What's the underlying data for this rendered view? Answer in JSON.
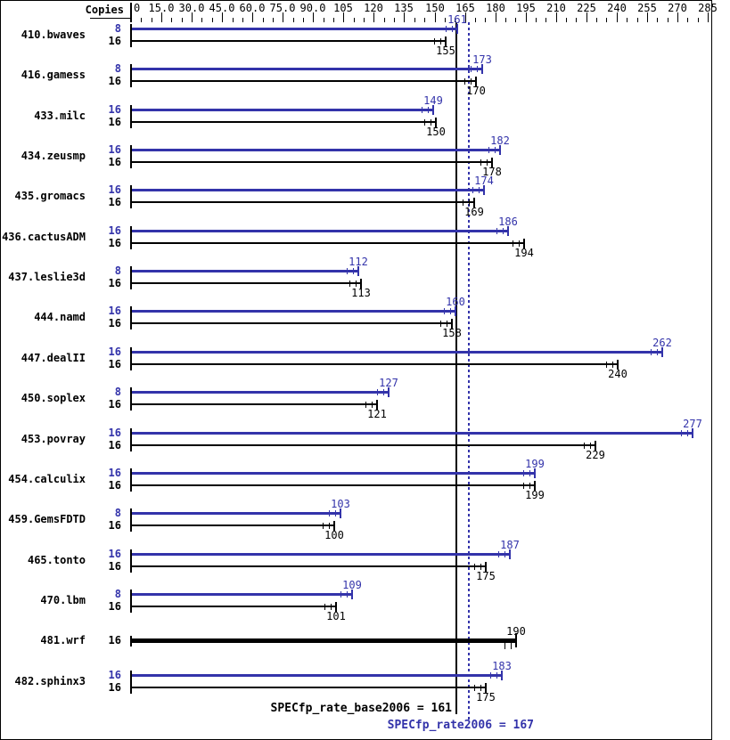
{
  "chart_data": {
    "type": "bar",
    "orientation": "horizontal",
    "copies_header": "Copies",
    "series_colors": {
      "peak": "#3333aa",
      "base": "#000000"
    },
    "x_axis": {
      "min": 0,
      "max": 285,
      "minor_step": 5,
      "major_step": 15,
      "tick_labels": [
        {
          "value": 0,
          "text": "0"
        },
        {
          "value": 15,
          "text": "15.0"
        },
        {
          "value": 30,
          "text": "30.0"
        },
        {
          "value": 45,
          "text": "45.0"
        },
        {
          "value": 60,
          "text": "60.0"
        },
        {
          "value": 75,
          "text": "75.0"
        },
        {
          "value": 90,
          "text": "90.0"
        },
        {
          "value": 105,
          "text": "105"
        },
        {
          "value": 120,
          "text": "120"
        },
        {
          "value": 135,
          "text": "135"
        },
        {
          "value": 150,
          "text": "150"
        },
        {
          "value": 165,
          "text": "165"
        },
        {
          "value": 180,
          "text": "180"
        },
        {
          "value": 195,
          "text": "195"
        },
        {
          "value": 210,
          "text": "210"
        },
        {
          "value": 225,
          "text": "225"
        },
        {
          "value": 240,
          "text": "240"
        },
        {
          "value": 255,
          "text": "255"
        },
        {
          "value": 270,
          "text": "270"
        },
        {
          "value": 285,
          "text": "285"
        }
      ]
    },
    "reference_lines": [
      {
        "name": "base",
        "label": "SPECfp_rate_base2006 = 161",
        "value": 161,
        "style": "solid",
        "color": "#000000"
      },
      {
        "name": "peak",
        "label": "SPECfp_rate2006 = 167",
        "value": 167,
        "style": "dotted",
        "color": "#3333aa"
      }
    ],
    "benchmarks": [
      {
        "name": "410.bwaves",
        "bars": [
          {
            "copies": "8",
            "series": "peak",
            "value": 161
          },
          {
            "copies": "16",
            "series": "base",
            "value": 155
          }
        ]
      },
      {
        "name": "416.gamess",
        "bars": [
          {
            "copies": "8",
            "series": "peak",
            "value": 173
          },
          {
            "copies": "16",
            "series": "base",
            "value": 170
          }
        ]
      },
      {
        "name": "433.milc",
        "bars": [
          {
            "copies": "16",
            "series": "peak",
            "value": 149
          },
          {
            "copies": "16",
            "series": "base",
            "value": 150
          }
        ]
      },
      {
        "name": "434.zeusmp",
        "bars": [
          {
            "copies": "16",
            "series": "peak",
            "value": 182
          },
          {
            "copies": "16",
            "series": "base",
            "value": 178
          }
        ]
      },
      {
        "name": "435.gromacs",
        "bars": [
          {
            "copies": "16",
            "series": "peak",
            "value": 174
          },
          {
            "copies": "16",
            "series": "base",
            "value": 169
          }
        ]
      },
      {
        "name": "436.cactusADM",
        "bars": [
          {
            "copies": "16",
            "series": "peak",
            "value": 186
          },
          {
            "copies": "16",
            "series": "base",
            "value": 194
          }
        ]
      },
      {
        "name": "437.leslie3d",
        "bars": [
          {
            "copies": "8",
            "series": "peak",
            "value": 112
          },
          {
            "copies": "16",
            "series": "base",
            "value": 113
          }
        ]
      },
      {
        "name": "444.namd",
        "bars": [
          {
            "copies": "16",
            "series": "peak",
            "value": 160
          },
          {
            "copies": "16",
            "series": "base",
            "value": 158
          }
        ]
      },
      {
        "name": "447.dealII",
        "bars": [
          {
            "copies": "16",
            "series": "peak",
            "value": 262
          },
          {
            "copies": "16",
            "series": "base",
            "value": 240
          }
        ]
      },
      {
        "name": "450.soplex",
        "bars": [
          {
            "copies": "8",
            "series": "peak",
            "value": 127
          },
          {
            "copies": "16",
            "series": "base",
            "value": 121
          }
        ]
      },
      {
        "name": "453.povray",
        "bars": [
          {
            "copies": "16",
            "series": "peak",
            "value": 277
          },
          {
            "copies": "16",
            "series": "base",
            "value": 229
          }
        ]
      },
      {
        "name": "454.calculix",
        "bars": [
          {
            "copies": "16",
            "series": "peak",
            "value": 199
          },
          {
            "copies": "16",
            "series": "base",
            "value": 199
          }
        ]
      },
      {
        "name": "459.GemsFDTD",
        "bars": [
          {
            "copies": "8",
            "series": "peak",
            "value": 103
          },
          {
            "copies": "16",
            "series": "base",
            "value": 100
          }
        ]
      },
      {
        "name": "465.tonto",
        "bars": [
          {
            "copies": "16",
            "series": "peak",
            "value": 187
          },
          {
            "copies": "16",
            "series": "base",
            "value": 175
          }
        ]
      },
      {
        "name": "470.lbm",
        "bars": [
          {
            "copies": "8",
            "series": "peak",
            "value": 109
          },
          {
            "copies": "16",
            "series": "base",
            "value": 101
          }
        ]
      },
      {
        "name": "481.wrf",
        "bars": [
          {
            "copies": "16",
            "series": "base",
            "value": 190,
            "thick": true,
            "label_above": true
          }
        ]
      },
      {
        "name": "482.sphinx3",
        "bars": [
          {
            "copies": "16",
            "series": "peak",
            "value": 183
          },
          {
            "copies": "16",
            "series": "base",
            "value": 175
          }
        ]
      }
    ]
  }
}
